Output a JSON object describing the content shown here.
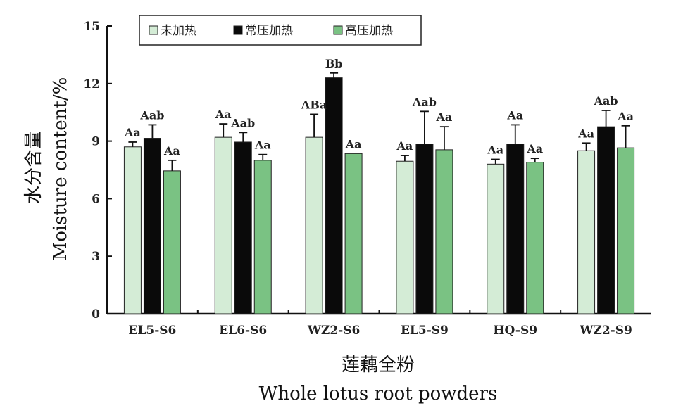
{
  "chart_data": {
    "type": "bar",
    "categories": [
      "EL5-S6",
      "EL6-S6",
      "WZ2-S6",
      "EL5-S9",
      "HQ-S9",
      "WZ2-S9"
    ],
    "series": [
      {
        "name": "未加热",
        "color": "#d4ecd6",
        "values": [
          8.7,
          9.2,
          9.2,
          7.95,
          7.8,
          8.5
        ],
        "errors": [
          0.25,
          0.7,
          1.2,
          0.3,
          0.25,
          0.4
        ],
        "labels": [
          "Aa",
          "Aa",
          "ABa",
          "Aa",
          "Aa",
          "Aa"
        ]
      },
      {
        "name": "常压加热",
        "color": "#0a0a0a",
        "values": [
          9.15,
          8.95,
          12.3,
          8.85,
          8.85,
          9.75
        ],
        "errors": [
          0.7,
          0.5,
          0.25,
          1.7,
          1.0,
          0.85
        ],
        "labels": [
          "Aab",
          "Aab",
          "Bb",
          "Aab",
          "Aa",
          "Aab"
        ]
      },
      {
        "name": "高压加热",
        "color": "#7ac283",
        "values": [
          7.45,
          8.0,
          8.35,
          8.55,
          7.9,
          8.65
        ],
        "errors": [
          0.55,
          0.3,
          0.0,
          1.2,
          0.2,
          1.15
        ],
        "labels": [
          "Aa",
          "Aa",
          "Aa",
          "Aa",
          "Aa",
          "Aa"
        ]
      }
    ],
    "y_ticks": [
      "0",
      "3",
      "6",
      "9",
      "12",
      "15"
    ],
    "ylim": [
      0,
      15
    ],
    "ylabel_cn": "水分含量",
    "ylabel_en": "Moisture content/%",
    "xlabel_cn": "莲藕全粉",
    "xlabel_en": "Whole lotus root powders",
    "legend_position": "top-left"
  }
}
